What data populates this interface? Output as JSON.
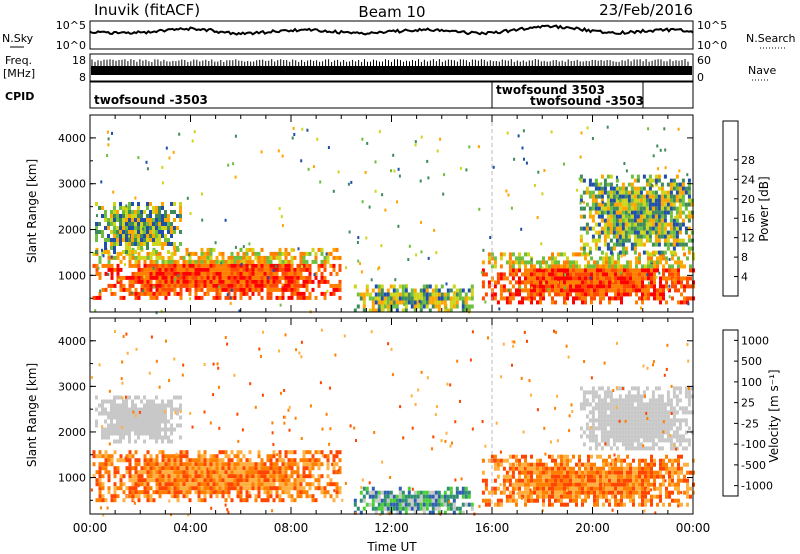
{
  "header": {
    "station": "Inuvik (fitACF)",
    "beam": "Beam 10",
    "date": "23/Feb/2016"
  },
  "panels": {
    "nsky": {
      "label": "N.Sky",
      "left_ticks": [
        "10^5",
        "10^0"
      ],
      "right_ticks": [
        "10^5",
        "10^0"
      ],
      "right_label": "N.Search",
      "right_label_style": "dotted"
    },
    "freq": {
      "label_line1": "Freq.",
      "label_line2": "[MHz]",
      "left_ticks": [
        "18",
        "8"
      ],
      "right_ticks": [
        "60",
        "0"
      ],
      "right_label": "Nave",
      "right_label_style": "dotted"
    },
    "cpid": {
      "label": "CPID",
      "entries": [
        {
          "text": "twofsound -3503"
        },
        {
          "text": "twofsound 3503"
        },
        {
          "text": "twofsound -3503"
        }
      ]
    }
  },
  "colors": {
    "power": [
      "#0000ff",
      "#1f4faa",
      "#3f8a5a",
      "#6fbf3f",
      "#cfd61a",
      "#ffa500",
      "#ff7f00",
      "#ff4b00",
      "#ff0000"
    ],
    "velocity": [
      "#ff0000",
      "#ff4500",
      "#ff7f00",
      "#ffb040",
      "#c8c8c8",
      "#4dcf3a",
      "#2f8f6f",
      "#2f5faf",
      "#0040ff"
    ]
  },
  "chart_data": [
    {
      "type": "heatmap",
      "name": "power",
      "xlabel": "",
      "ylabel": "Slant Range [km]",
      "y_ticks": [
        1000,
        2000,
        3000,
        4000
      ],
      "ylim": [
        200,
        4500
      ],
      "colorbar": {
        "label": "Power [dB]",
        "range": [
          0,
          32
        ],
        "ticks": [
          "4",
          "8",
          "12",
          "16",
          "20",
          "24",
          "28"
        ]
      },
      "regions": [
        {
          "t0": 0.1,
          "t1": 10.0,
          "r0": 500,
          "r1": 1600,
          "level": 30
        },
        {
          "t0": 0.2,
          "t1": 3.6,
          "r0": 1500,
          "r1": 2600,
          "level": 14
        },
        {
          "t0": 10.5,
          "t1": 15.2,
          "r0": 250,
          "r1": 800,
          "level": 16
        },
        {
          "t0": 15.6,
          "t1": 24.0,
          "r0": 400,
          "r1": 1500,
          "level": 30
        },
        {
          "t0": 19.5,
          "t1": 24.0,
          "r0": 1500,
          "r1": 3200,
          "level": 14
        }
      ]
    },
    {
      "type": "heatmap",
      "name": "velocity",
      "xlabel": "Time UT",
      "ylabel": "Slant Range [km]",
      "y_ticks": [
        1000,
        2000,
        3000,
        4000
      ],
      "ylim": [
        200,
        4500
      ],
      "x_ticks": [
        "00:00",
        "04:00",
        "08:00",
        "12:00",
        "16:00",
        "20:00",
        "00:00"
      ],
      "colorbar": {
        "label": "Velocity [m s⁻¹]",
        "ticks": [
          "1000",
          "500",
          "100",
          "25",
          "-25",
          "-100",
          "-500",
          "-1000"
        ]
      },
      "regions": [
        {
          "t0": 0.1,
          "t1": 10.0,
          "r0": 500,
          "r1": 1600,
          "level": -300
        },
        {
          "t0": 0.2,
          "t1": 3.6,
          "r0": 1800,
          "r1": 2800,
          "level": 0
        },
        {
          "t0": 10.5,
          "t1": 15.2,
          "r0": 250,
          "r1": 800,
          "level": 150
        },
        {
          "t0": 15.6,
          "t1": 24.0,
          "r0": 400,
          "r1": 1500,
          "level": -400
        },
        {
          "t0": 19.5,
          "t1": 24.0,
          "r0": 1600,
          "r1": 3000,
          "level": 0
        }
      ]
    }
  ]
}
